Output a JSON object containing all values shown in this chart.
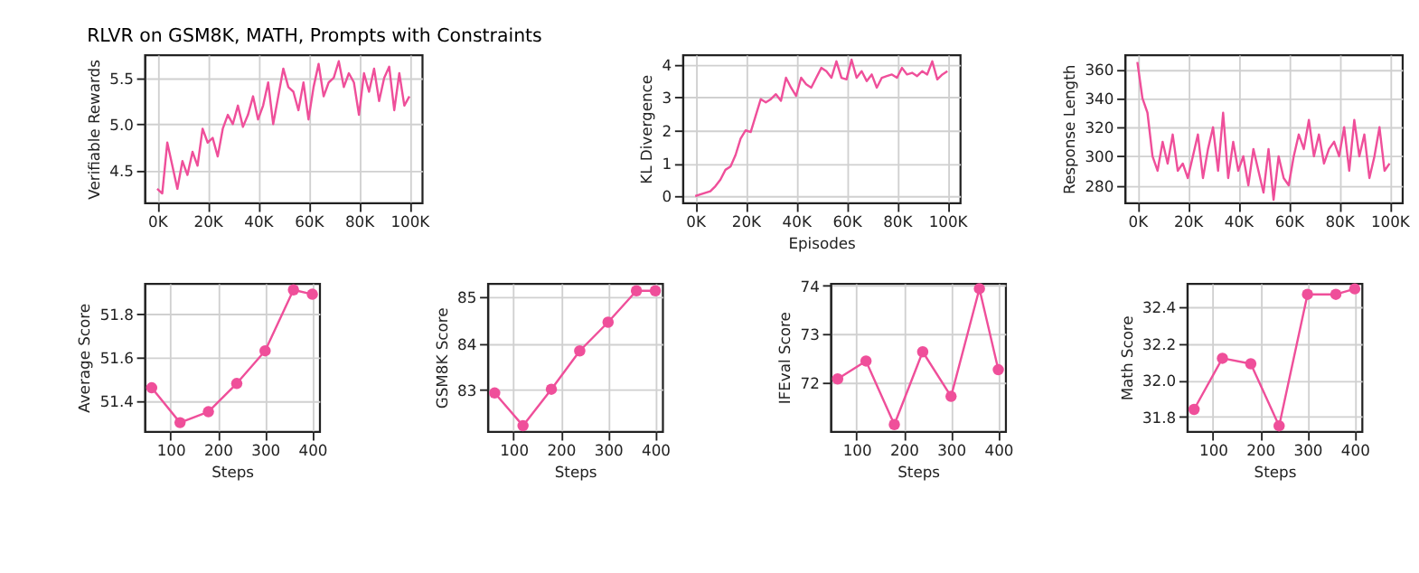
{
  "chart_data": [
    {
      "type": "line",
      "title": "RLVR on GSM8K, MATH, Prompts with Constraints",
      "ylabel": "Verifiable Rewards",
      "grid": true,
      "marker": "none",
      "x": [
        0,
        2000,
        4000,
        6000,
        8000,
        10000,
        12000,
        14000,
        16000,
        18000,
        20000,
        22000,
        24000,
        26000,
        28000,
        30000,
        32000,
        34000,
        36000,
        38000,
        40000,
        42000,
        44000,
        46000,
        48000,
        50000,
        52000,
        54000,
        56000,
        58000,
        60000,
        62000,
        64000,
        66000,
        68000,
        70000,
        72000,
        74000,
        76000,
        78000,
        80000,
        82000,
        84000,
        86000,
        88000,
        90000,
        92000,
        94000,
        96000,
        98000,
        100000
      ],
      "series": [
        {
          "color": "#ef4f9a",
          "values": [
            4.3,
            4.25,
            4.8,
            4.55,
            4.3,
            4.6,
            4.45,
            4.7,
            4.55,
            4.95,
            4.8,
            4.85,
            4.65,
            4.95,
            5.1,
            5.0,
            5.2,
            4.97,
            5.1,
            5.3,
            5.05,
            5.2,
            5.45,
            5.0,
            5.3,
            5.6,
            5.4,
            5.35,
            5.15,
            5.45,
            5.05,
            5.4,
            5.65,
            5.3,
            5.45,
            5.5,
            5.68,
            5.4,
            5.55,
            5.45,
            5.1,
            5.55,
            5.35,
            5.6,
            5.25,
            5.5,
            5.62,
            5.15,
            5.55,
            5.2,
            5.3
          ]
        }
      ],
      "xlim": [
        -5000,
        105000
      ],
      "xticks": [
        {
          "value": 0,
          "label": "0K"
        },
        {
          "value": 20000,
          "label": "20K"
        },
        {
          "value": 40000,
          "label": "40K"
        },
        {
          "value": 60000,
          "label": "60K"
        },
        {
          "value": 80000,
          "label": "80K"
        },
        {
          "value": 100000,
          "label": "100K"
        }
      ],
      "ylim": [
        4.15,
        5.75
      ],
      "yticks": [
        4.5,
        {
          "value": 5,
          "label": "5.0"
        },
        5.5
      ]
    },
    {
      "type": "line",
      "ylabel": "KL Divergence",
      "xlabel": "Episodes",
      "grid": true,
      "marker": "none",
      "x": [
        0,
        2000,
        4000,
        6000,
        8000,
        10000,
        12000,
        14000,
        16000,
        18000,
        20000,
        22000,
        24000,
        26000,
        28000,
        30000,
        32000,
        34000,
        36000,
        38000,
        40000,
        42000,
        44000,
        46000,
        48000,
        50000,
        52000,
        54000,
        56000,
        58000,
        60000,
        62000,
        64000,
        66000,
        68000,
        70000,
        72000,
        74000,
        76000,
        78000,
        80000,
        82000,
        84000,
        86000,
        88000,
        90000,
        92000,
        94000,
        96000,
        98000,
        100000
      ],
      "series": [
        {
          "color": "#ef4f9a",
          "values": [
            0.0,
            0.05,
            0.1,
            0.15,
            0.3,
            0.5,
            0.8,
            0.9,
            1.25,
            1.75,
            2.0,
            1.95,
            2.45,
            2.95,
            2.85,
            2.95,
            3.1,
            2.9,
            3.6,
            3.3,
            3.05,
            3.6,
            3.4,
            3.3,
            3.6,
            3.9,
            3.8,
            3.6,
            4.1,
            3.6,
            3.55,
            4.15,
            3.6,
            3.8,
            3.5,
            3.7,
            3.3,
            3.6,
            3.65,
            3.7,
            3.6,
            3.9,
            3.7,
            3.75,
            3.65,
            3.8,
            3.7,
            4.1,
            3.55,
            3.7,
            3.8
          ]
        }
      ],
      "xlim": [
        -5000,
        105000
      ],
      "xticks": [
        {
          "value": 0,
          "label": "0K"
        },
        {
          "value": 20000,
          "label": "20K"
        },
        {
          "value": 40000,
          "label": "40K"
        },
        {
          "value": 60000,
          "label": "60K"
        },
        {
          "value": 80000,
          "label": "80K"
        },
        {
          "value": 100000,
          "label": "100K"
        }
      ],
      "ylim": [
        -0.2,
        4.3
      ],
      "yticks": [
        0,
        1,
        2,
        3,
        4
      ]
    },
    {
      "type": "line",
      "ylabel": "Response Length",
      "grid": true,
      "marker": "none",
      "x": [
        0,
        2000,
        4000,
        6000,
        8000,
        10000,
        12000,
        14000,
        16000,
        18000,
        20000,
        22000,
        24000,
        26000,
        28000,
        30000,
        32000,
        34000,
        36000,
        38000,
        40000,
        42000,
        44000,
        46000,
        48000,
        50000,
        52000,
        54000,
        56000,
        58000,
        60000,
        62000,
        64000,
        66000,
        68000,
        70000,
        72000,
        74000,
        76000,
        78000,
        80000,
        82000,
        84000,
        86000,
        88000,
        90000,
        92000,
        94000,
        96000,
        98000,
        100000
      ],
      "series": [
        {
          "color": "#ef4f9a",
          "values": [
            365,
            340,
            330,
            300,
            290,
            310,
            295,
            315,
            290,
            295,
            285,
            300,
            315,
            285,
            305,
            320,
            290,
            330,
            285,
            310,
            290,
            300,
            280,
            305,
            290,
            275,
            305,
            270,
            300,
            285,
            280,
            300,
            315,
            305,
            325,
            300,
            315,
            295,
            305,
            310,
            300,
            320,
            290,
            325,
            300,
            315,
            285,
            300,
            320,
            290,
            295
          ]
        }
      ],
      "xlim": [
        -5000,
        105000
      ],
      "xticks": [
        {
          "value": 0,
          "label": "0K"
        },
        {
          "value": 20000,
          "label": "20K"
        },
        {
          "value": 40000,
          "label": "40K"
        },
        {
          "value": 60000,
          "label": "60K"
        },
        {
          "value": 80000,
          "label": "80K"
        },
        {
          "value": 100000,
          "label": "100K"
        }
      ],
      "ylim": [
        268,
        370
      ],
      "yticks": [
        280,
        300,
        320,
        340,
        360
      ]
    },
    {
      "type": "line",
      "ylabel": "Average Score",
      "xlabel": "Steps",
      "grid": true,
      "marker": "circle",
      "x": [
        60,
        120,
        180,
        240,
        300,
        360,
        400
      ],
      "series": [
        {
          "color": "#ef4f9a",
          "values": [
            51.46,
            51.3,
            51.35,
            51.48,
            51.63,
            51.91,
            51.89
          ]
        }
      ],
      "xlim": [
        45,
        415
      ],
      "xticks": [
        100,
        200,
        300,
        400
      ],
      "ylim": [
        51.26,
        51.94
      ],
      "yticks": [
        51.4,
        51.6,
        51.8
      ]
    },
    {
      "type": "line",
      "ylabel": "GSM8K Score",
      "xlabel": "Steps",
      "grid": true,
      "marker": "circle",
      "x": [
        60,
        120,
        180,
        240,
        300,
        360,
        400
      ],
      "series": [
        {
          "color": "#ef4f9a",
          "values": [
            82.93,
            82.22,
            83.01,
            83.84,
            84.46,
            85.14,
            85.14
          ]
        }
      ],
      "xlim": [
        45,
        415
      ],
      "xticks": [
        100,
        200,
        300,
        400
      ],
      "ylim": [
        82.1,
        85.3
      ],
      "yticks": [
        83,
        84,
        85
      ]
    },
    {
      "type": "line",
      "ylabel": "IFEval Score",
      "xlabel": "Steps",
      "grid": true,
      "marker": "circle",
      "x": [
        60,
        120,
        180,
        240,
        300,
        360,
        400
      ],
      "series": [
        {
          "color": "#ef4f9a",
          "values": [
            72.08,
            72.45,
            71.14,
            72.64,
            71.72,
            73.94,
            72.27
          ]
        }
      ],
      "xlim": [
        45,
        415
      ],
      "xticks": [
        100,
        200,
        300,
        400
      ],
      "ylim": [
        71.0,
        74.05
      ],
      "yticks": [
        72,
        73,
        74
      ]
    },
    {
      "type": "line",
      "ylabel": "Math Score",
      "xlabel": "Steps",
      "grid": true,
      "marker": "circle",
      "x": [
        60,
        120,
        180,
        240,
        300,
        360,
        400
      ],
      "series": [
        {
          "color": "#ef4f9a",
          "values": [
            31.84,
            32.12,
            32.09,
            31.75,
            32.47,
            32.47,
            32.5
          ]
        }
      ],
      "xlim": [
        45,
        415
      ],
      "xticks": [
        100,
        200,
        300,
        400
      ],
      "ylim": [
        31.72,
        32.53
      ],
      "yticks": [
        31.8,
        {
          "value": 32,
          "label": "32.0"
        },
        32.2,
        32.4
      ]
    }
  ]
}
